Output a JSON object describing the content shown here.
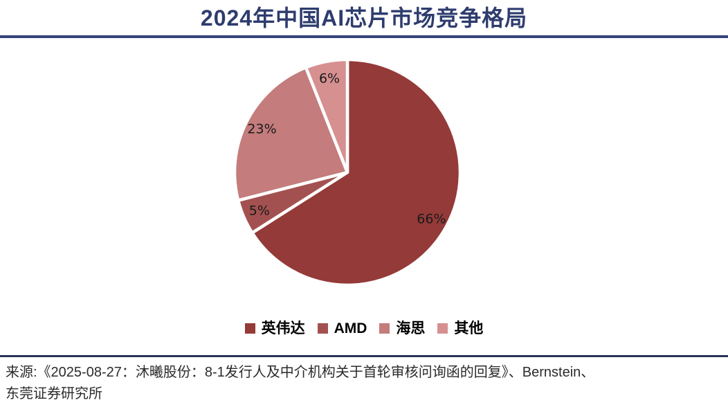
{
  "title": "2024年中国AI芯片市场竞争格局",
  "chart_data": {
    "type": "pie",
    "title": "2024年中国AI芯片市场竞争格局",
    "direction": "clockwise",
    "start_angle_deg": 0,
    "slice_border_color": "#ffffff",
    "legend_position": "bottom",
    "series": [
      {
        "name": "英伟达",
        "value": 66,
        "label": "66%",
        "color": "#943a38"
      },
      {
        "name": "AMD",
        "value": 5,
        "label": "5%",
        "color": "#a35150"
      },
      {
        "name": "海思",
        "value": 23,
        "label": "23%",
        "color": "#c47c7c"
      },
      {
        "name": "其他",
        "value": 6,
        "label": "6%",
        "color": "#d69090"
      }
    ]
  },
  "legend": {
    "items": [
      {
        "label": "英伟达",
        "color": "#943a38"
      },
      {
        "label": "AMD",
        "color": "#a35150"
      },
      {
        "label": "海思",
        "color": "#c47c7c"
      },
      {
        "label": "其他",
        "color": "#d69090"
      }
    ]
  },
  "source": {
    "lines": [
      "来源:《2025-08-27：沐曦股份：8-1发行人及中介机构关于首轮审核问询函的回复》、Bernstein、",
      "东莞证券研究所"
    ]
  },
  "colors": {
    "title": "#2e3c6e",
    "top_rule": "#35437a",
    "bottom_rule": "#283459",
    "pie_label": "#1a1a1a",
    "source_text": "#2b2b2b"
  }
}
